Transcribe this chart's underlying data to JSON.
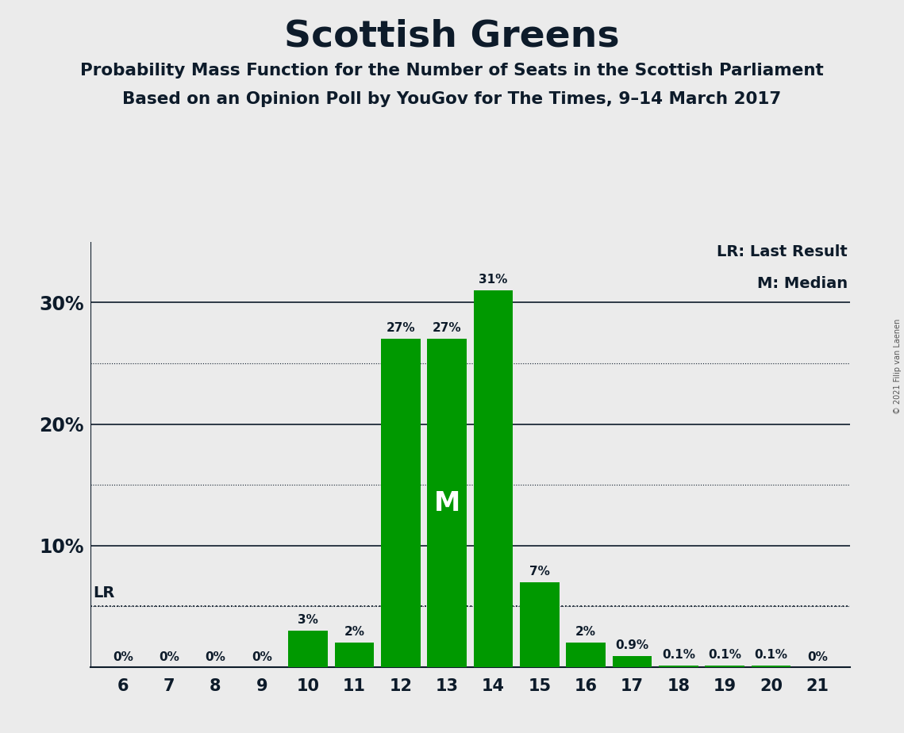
{
  "title": "Scottish Greens",
  "subtitle1": "Probability Mass Function for the Number of Seats in the Scottish Parliament",
  "subtitle2": "Based on an Opinion Poll by YouGov for The Times, 9–14 March 2017",
  "copyright": "© 2021 Filip van Laenen",
  "seats": [
    6,
    7,
    8,
    9,
    10,
    11,
    12,
    13,
    14,
    15,
    16,
    17,
    18,
    19,
    20,
    21
  ],
  "probabilities": [
    0.0,
    0.0,
    0.0,
    0.0,
    3.0,
    2.0,
    27.0,
    27.0,
    31.0,
    7.0,
    2.0,
    0.9,
    0.1,
    0.1,
    0.1,
    0.0
  ],
  "labels": [
    "0%",
    "0%",
    "0%",
    "0%",
    "3%",
    "2%",
    "27%",
    "27%",
    "31%",
    "7%",
    "2%",
    "0.9%",
    "0.1%",
    "0.1%",
    "0.1%",
    "0%"
  ],
  "bar_color": "#009900",
  "median_seat": 13,
  "lr_y": 5.0,
  "lr_label": "LR",
  "median_label": "M",
  "background_color": "#ebebeb",
  "major_yticks": [
    10,
    20,
    30
  ],
  "major_ytick_labels": [
    "10%",
    "20%",
    "30%"
  ],
  "dotted_yticks": [
    5,
    15,
    25
  ],
  "ylim": [
    0,
    35
  ],
  "xlim_left": 5.3,
  "xlim_right": 21.7,
  "annotation_legend_lr": "LR: Last Result",
  "annotation_legend_m": "M: Median",
  "title_color": "#0d1b2a",
  "text_color": "#0d1b2a"
}
